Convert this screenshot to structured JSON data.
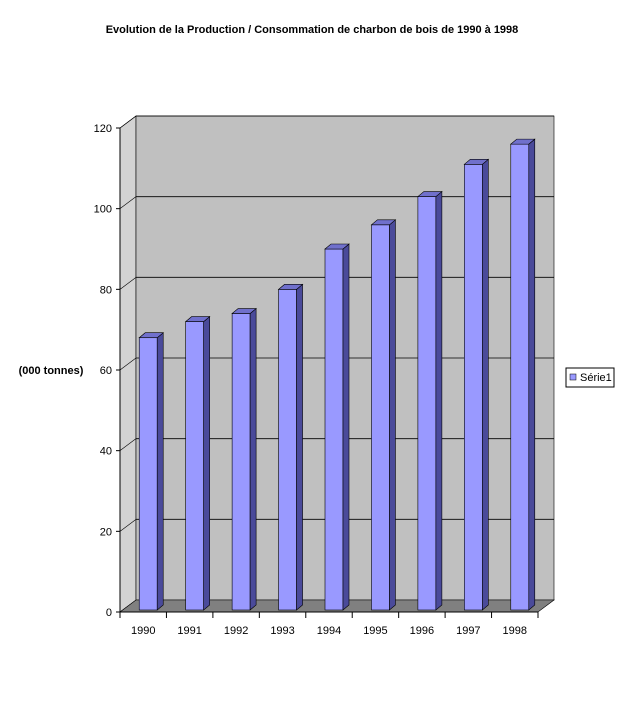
{
  "chart_data": {
    "type": "bar",
    "title": "Evolution de la Production / Consommation de charbon de bois de 1990 à 1998",
    "ylabel": "(000 tonnes)",
    "xlabel": "",
    "categories": [
      "1990",
      "1991",
      "1992",
      "1993",
      "1994",
      "1995",
      "1996",
      "1997",
      "1998"
    ],
    "series": [
      {
        "name": "Série1",
        "values": [
          68,
          72,
          74,
          80,
          90,
          96,
          103,
          111,
          116
        ]
      }
    ],
    "ylim": [
      0,
      120
    ],
    "yticks": [
      0,
      20,
      40,
      60,
      80,
      100,
      120
    ],
    "grid": true,
    "legend_position": "right",
    "colors": {
      "bar_front": "#9999ff",
      "bar_side": "#4a4a9a",
      "bar_top": "#7070cc",
      "back_wall": "#c0c0c0",
      "side_wall": "#d3d3d3",
      "floor": "#808080"
    }
  }
}
